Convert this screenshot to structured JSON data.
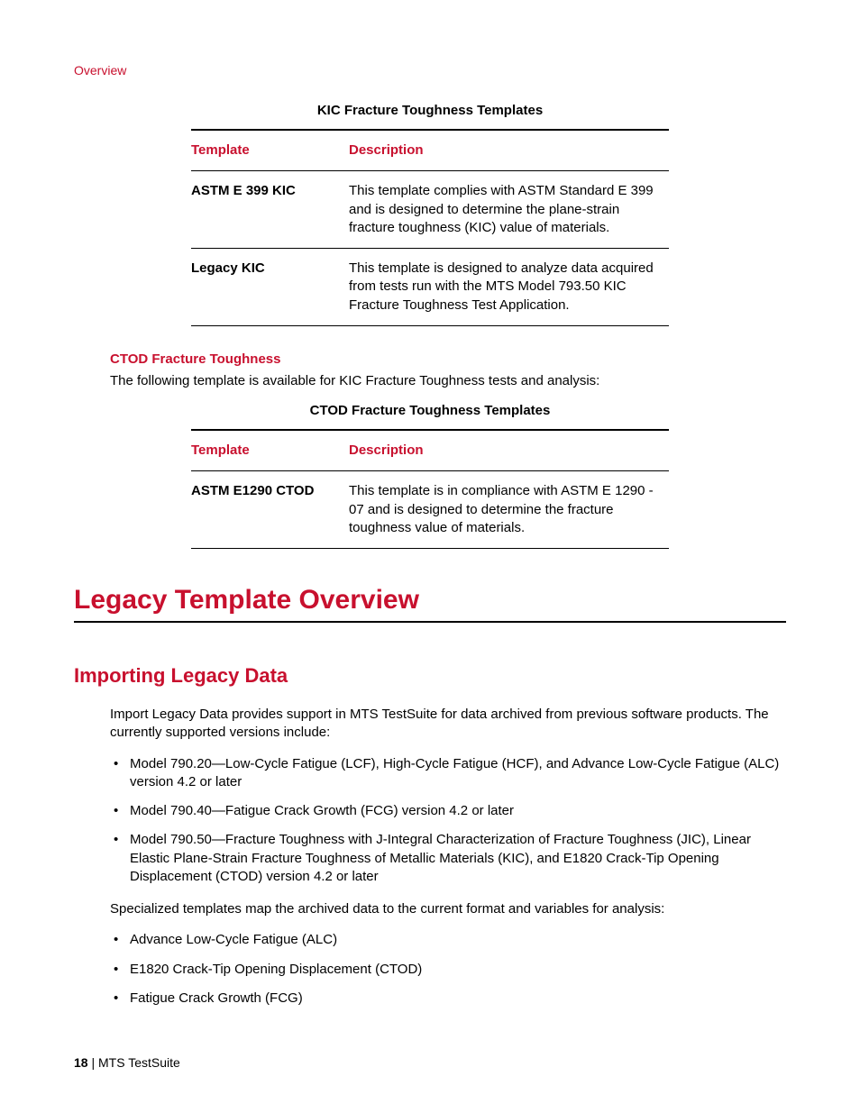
{
  "breadcrumb": "Overview",
  "table1": {
    "title": "KIC Fracture Toughness Templates",
    "columns": [
      "Template",
      "Description"
    ],
    "rows": [
      {
        "name": "ASTM E 399 KIC",
        "desc": "This template complies with ASTM Standard E 399 and is designed to determine the plane-strain fracture toughness (KIC) value of materials."
      },
      {
        "name": "Legacy KIC",
        "desc": "This template is designed to analyze data acquired from tests run with the MTS Model 793.50 KIC Fracture Toughness Test Application."
      }
    ]
  },
  "ctod_section": {
    "heading": "CTOD Fracture Toughness",
    "intro": "The following template is available for KIC Fracture Toughness tests and analysis:"
  },
  "table2": {
    "title": "CTOD Fracture Toughness Templates",
    "columns": [
      "Template",
      "Description"
    ],
    "rows": [
      {
        "name": "ASTM E1290 CTOD",
        "desc": "This template is in compliance with ASTM E 1290 - 07 and is designed to determine the fracture toughness value of materials."
      }
    ]
  },
  "h1": "Legacy Template Overview",
  "h2": "Importing Legacy Data",
  "p1": "Import Legacy Data provides support in MTS TestSuite for data archived from previous software products. The currently supported versions include:",
  "list1": [
    "Model 790.20—Low-Cycle Fatigue (LCF), High-Cycle Fatigue (HCF), and Advance Low-Cycle Fatigue (ALC) version 4.2 or later",
    "Model 790.40—Fatigue Crack Growth (FCG) version 4.2 or later",
    "Model 790.50—Fracture Toughness with J-Integral Characterization of Fracture Toughness (JIC), Linear Elastic Plane-Strain Fracture Toughness of Metallic Materials (KIC), and E1820 Crack-Tip Opening Displacement (CTOD) version 4.2 or later"
  ],
  "p2": "Specialized templates map the archived data to the current format and variables for analysis:",
  "list2": [
    "Advance Low-Cycle Fatigue (ALC)",
    "E1820 Crack-Tip Opening Displacement (CTOD)",
    "Fatigue Crack Growth (FCG)"
  ],
  "footer": {
    "page": "18",
    "sep": " | ",
    "doc": "MTS TestSuite"
  }
}
